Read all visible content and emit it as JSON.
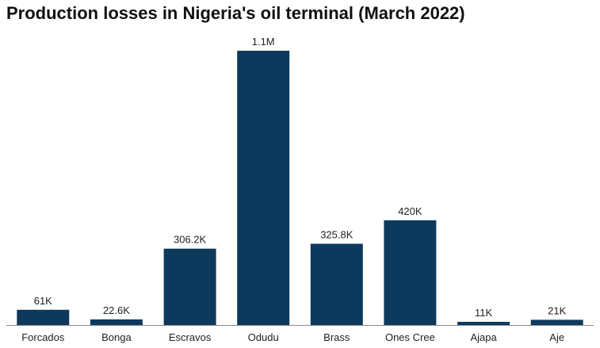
{
  "chart_data": {
    "type": "bar",
    "title": "Production losses in Nigeria's oil terminal (March 2022)",
    "categories": [
      "Forcados",
      "Bonga",
      "Escravos",
      "Odudu",
      "Brass",
      "Ones Cree",
      "Ajapa",
      "Aje"
    ],
    "values": [
      61000,
      22600,
      306200,
      1100000,
      325800,
      420000,
      11000,
      21000
    ],
    "data_labels": [
      "61K",
      "22.6K",
      "306.2K",
      "1.1M",
      "325.8K",
      "420K",
      "11K",
      "21K"
    ],
    "xlabel": "",
    "ylabel": "",
    "ylim": [
      0,
      1100000
    ],
    "grid": false,
    "legend": "none",
    "colors": {
      "bar": "#0d3a5c",
      "baseline": "#888888",
      "text": "#222222"
    }
  }
}
